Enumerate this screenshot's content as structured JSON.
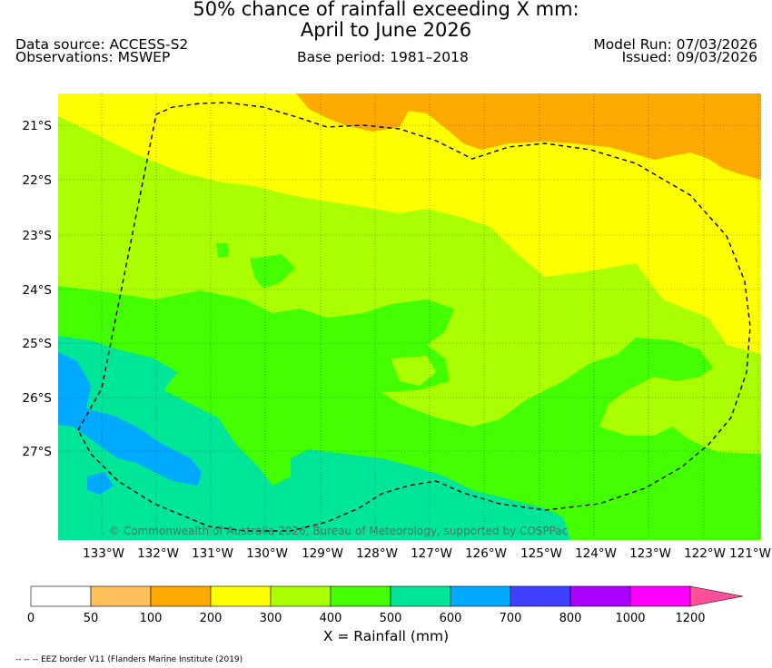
{
  "title_line1": "50% chance of rainfall exceeding X mm:",
  "title_line2": "April to June 2026",
  "data_source": "Data source: ACCESS-S2",
  "observations": "Observations: MSWEP",
  "base_period": "Base period: 1981–2018",
  "model_run": "Model Run: 07/03/2026",
  "issued": "Issued: 09/03/2026",
  "copyright": "© Commonwealth of Australia 2026, Bureau of Meteorology, supported by COSPPac",
  "footer_note": "-- -- -- EEZ border V11 (Flanders Marine Institute (2019)",
  "colorbar_label": "X = Rainfall (mm)",
  "chart_data": {
    "type": "heatmap",
    "variable": "Rainfall (mm)",
    "x_ticks": [
      "133°W",
      "132°W",
      "131°W",
      "130°W",
      "129°W",
      "128°W",
      "127°W",
      "126°W",
      "125°W",
      "124°W",
      "123°W",
      "122°W",
      "121°W"
    ],
    "x_values": [
      -133,
      -132,
      -131,
      -130,
      -129,
      -128,
      -127,
      -126,
      -125,
      -124,
      -123,
      -122,
      -121
    ],
    "y_ticks": [
      "21°S",
      "22°S",
      "23°S",
      "24°S",
      "25°S",
      "26°S",
      "27°S"
    ],
    "y_values": [
      -21,
      -22,
      -23,
      -24,
      -25,
      -26,
      -27
    ],
    "xlim": [
      -133.8,
      -120.9
    ],
    "ylim": [
      -28.65,
      -20.45
    ],
    "colorbar": {
      "ticks": [
        "0",
        "50",
        "100",
        "200",
        "300",
        "400",
        "500",
        "600",
        "700",
        "800",
        "1000",
        "1200"
      ],
      "bins": [
        {
          "range": "0-50",
          "color": "#ffffff"
        },
        {
          "range": "50-100",
          "color": "#ffc15c"
        },
        {
          "range": "100-200",
          "color": "#ffaa00"
        },
        {
          "range": "200-300",
          "color": "#ffff00"
        },
        {
          "range": "300-400",
          "color": "#aaff00"
        },
        {
          "range": "400-500",
          "color": "#44ff00"
        },
        {
          "range": "500-600",
          "color": "#00e699"
        },
        {
          "range": "600-700",
          "color": "#00aaff"
        },
        {
          "range": "700-800",
          "color": "#4040ff"
        },
        {
          "range": "800-1000",
          "color": "#aa00ff"
        },
        {
          "range": "1000-1200",
          "color": "#ff00ff"
        },
        {
          "range": ">1200",
          "color": "#ff4f9a"
        }
      ]
    },
    "regions": [
      {
        "name": "north-east",
        "value_range": "100-200"
      },
      {
        "name": "north band and east",
        "value_range": "200-300"
      },
      {
        "name": "central",
        "value_range": "300-400"
      },
      {
        "name": "south-central",
        "value_range": "400-500"
      },
      {
        "name": "south",
        "value_range": "500-600"
      },
      {
        "name": "south-west",
        "value_range": "600-700"
      }
    ],
    "overlay": "EEZ border (dashed)"
  }
}
